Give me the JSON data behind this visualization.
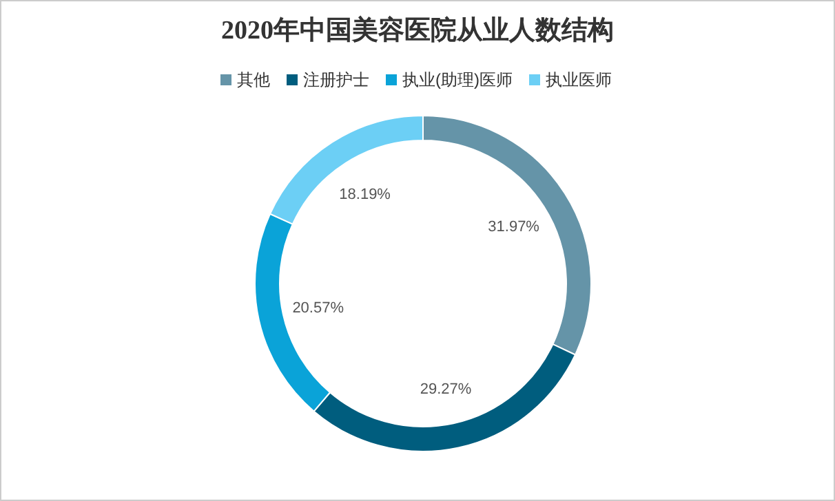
{
  "chart_data": {
    "type": "donut",
    "title": "2020年中国美容医院从业人数结构",
    "categories": [
      "其他",
      "注册护士",
      "执业(助理)医师",
      "执业医师"
    ],
    "values": [
      31.97,
      29.27,
      20.57,
      18.19
    ],
    "colors": [
      "#6594a8",
      "#005d7e",
      "#0aa3d8",
      "#6ccff5"
    ],
    "legend": "top",
    "value_labels": [
      "31.97%",
      "29.27%",
      "20.57%",
      "18.19%"
    ]
  }
}
